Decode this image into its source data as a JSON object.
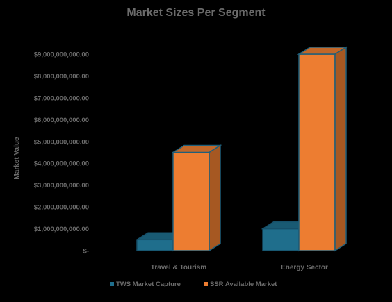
{
  "chart_data": {
    "type": "bar",
    "title": "Market Sizes Per Segment",
    "ylabel": "Market Value",
    "xlabel": "",
    "categories": [
      "Travel & Tourism",
      "Energy Sector"
    ],
    "series": [
      {
        "name": "TWS Market Capture",
        "color": "#1f6e8c",
        "values": [
          500000000,
          1000000000
        ]
      },
      {
        "name": "SSR Available Market",
        "color": "#ed7d31",
        "values": [
          4500000000,
          9000000000
        ]
      }
    ],
    "ylim": [
      0,
      9000000000
    ],
    "yticks": [
      {
        "value": 0,
        "label": "$-"
      },
      {
        "value": 1000000000,
        "label": "$1,000,000,000.00"
      },
      {
        "value": 2000000000,
        "label": "$2,000,000,000.00"
      },
      {
        "value": 3000000000,
        "label": "$3,000,000,000.00"
      },
      {
        "value": 4000000000,
        "label": "$4,000,000,000.00"
      },
      {
        "value": 5000000000,
        "label": "$5,000,000,000.00"
      },
      {
        "value": 6000000000,
        "label": "$6,000,000,000.00"
      },
      {
        "value": 7000000000,
        "label": "$7,000,000,000.00"
      },
      {
        "value": 8000000000,
        "label": "$8,000,000,000.00"
      },
      {
        "value": 9000000000,
        "label": "$9,000,000,000.00"
      }
    ],
    "grid": false,
    "legend": "bottom",
    "style": "3d-column"
  }
}
